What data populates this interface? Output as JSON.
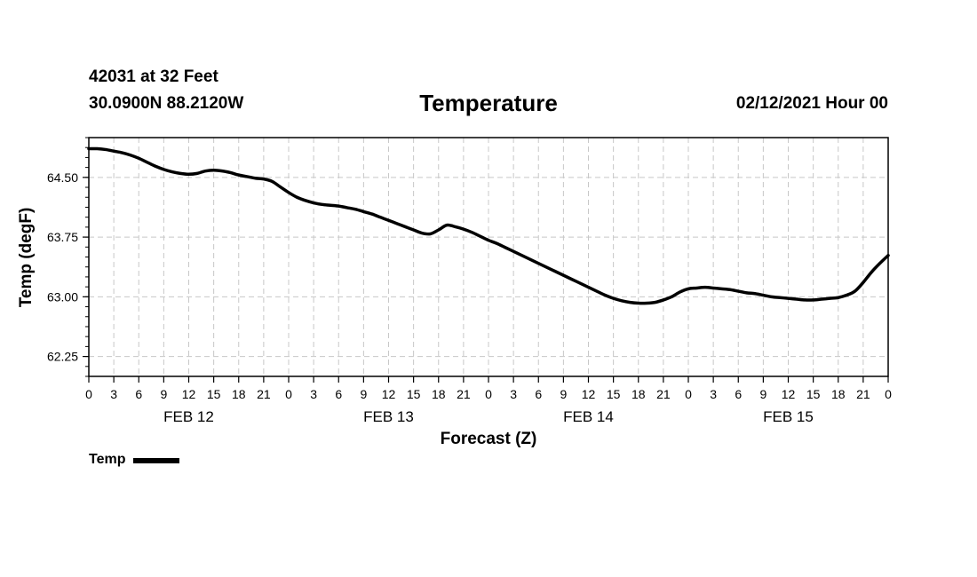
{
  "header": {
    "station": "42031 at 32 Feet",
    "coords": "30.0900N 88.2120W",
    "issued": "02/12/2021 Hour 00"
  },
  "chart_data": {
    "type": "line",
    "title": "Temperature",
    "xlabel": "Forecast (Z)",
    "ylabel": "Temp (degF)",
    "xlim": [
      0,
      96
    ],
    "ylim": [
      62.0,
      65.0
    ],
    "y_ticks": [
      62.25,
      63.0,
      63.75,
      64.5
    ],
    "y_tick_labels": [
      "62.25",
      "63.00",
      "63.75",
      "64.50"
    ],
    "x_ticks": [
      0,
      3,
      6,
      9,
      12,
      15,
      18,
      21,
      24,
      27,
      30,
      33,
      36,
      39,
      42,
      45,
      48,
      51,
      54,
      57,
      60,
      63,
      66,
      69,
      72,
      75,
      78,
      81,
      84,
      87,
      90,
      93,
      96
    ],
    "x_tick_labels": [
      "0",
      "3",
      "6",
      "9",
      "12",
      "15",
      "18",
      "21",
      "0",
      "3",
      "6",
      "9",
      "12",
      "15",
      "18",
      "21",
      "0",
      "3",
      "6",
      "9",
      "12",
      "15",
      "18",
      "21",
      "0",
      "3",
      "6",
      "9",
      "12",
      "15",
      "18",
      "21",
      "0"
    ],
    "day_labels": [
      {
        "x": 12,
        "label": "FEB 12"
      },
      {
        "x": 36,
        "label": "FEB 13"
      },
      {
        "x": 60,
        "label": "FEB 14"
      },
      {
        "x": 84,
        "label": "FEB 15"
      }
    ],
    "grid": true,
    "legend_position": "bottom-left",
    "series": [
      {
        "name": "Temp",
        "color": "#000000",
        "x": [
          0,
          1,
          2,
          3,
          4,
          5,
          6,
          7,
          8,
          9,
          10,
          11,
          12,
          13,
          14,
          15,
          16,
          17,
          18,
          19,
          20,
          21,
          22,
          23,
          24,
          25,
          26,
          27,
          28,
          29,
          30,
          31,
          32,
          33,
          34,
          35,
          36,
          37,
          38,
          39,
          40,
          41,
          42,
          43,
          44,
          45,
          46,
          47,
          48,
          49,
          50,
          51,
          52,
          53,
          54,
          55,
          56,
          57,
          58,
          59,
          60,
          61,
          62,
          63,
          64,
          65,
          66,
          67,
          68,
          69,
          70,
          71,
          72,
          73,
          74,
          75,
          76,
          77,
          78,
          79,
          80,
          81,
          82,
          83,
          84,
          85,
          86,
          87,
          88,
          89,
          90,
          91,
          92,
          93,
          94,
          95,
          96
        ],
        "y": [
          64.86,
          64.86,
          64.85,
          64.83,
          64.81,
          64.78,
          64.74,
          64.69,
          64.64,
          64.6,
          64.57,
          64.55,
          64.54,
          64.55,
          64.58,
          64.59,
          64.58,
          64.56,
          64.53,
          64.51,
          64.49,
          64.48,
          64.45,
          64.38,
          64.31,
          64.25,
          64.21,
          64.18,
          64.16,
          64.15,
          64.14,
          64.12,
          64.1,
          64.07,
          64.04,
          64.0,
          63.96,
          63.92,
          63.88,
          63.84,
          63.8,
          63.79,
          63.84,
          63.9,
          63.88,
          63.85,
          63.81,
          63.76,
          63.71,
          63.67,
          63.62,
          63.57,
          63.52,
          63.47,
          63.42,
          63.37,
          63.32,
          63.27,
          63.22,
          63.17,
          63.12,
          63.07,
          63.02,
          62.98,
          62.95,
          62.93,
          62.92,
          62.92,
          62.93,
          62.96,
          63.0,
          63.06,
          63.1,
          63.11,
          63.12,
          63.11,
          63.1,
          63.09,
          63.07,
          63.05,
          63.04,
          63.02,
          63.0,
          62.99,
          62.98,
          62.97,
          62.96,
          62.96,
          62.97,
          62.98,
          62.99,
          63.02,
          63.07,
          63.18,
          63.31,
          63.42,
          63.52
        ]
      }
    ]
  }
}
